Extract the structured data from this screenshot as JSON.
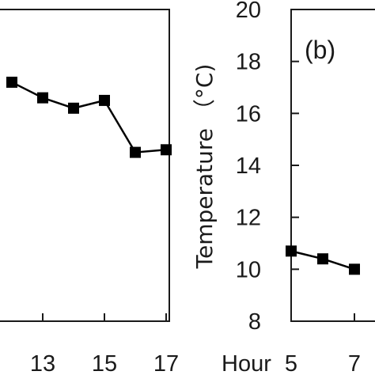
{
  "chart_data": [
    {
      "type": "line",
      "panel": "a",
      "xlabel": "",
      "ylabel": "",
      "x_ticks": [
        13,
        15,
        17
      ],
      "ylim": [
        8,
        20
      ],
      "series": [
        {
          "x": [
            12,
            13,
            14,
            15,
            16,
            17
          ],
          "y": [
            17.2,
            16.6,
            16.2,
            16.5,
            14.5,
            14.6
          ]
        }
      ]
    },
    {
      "type": "line",
      "panel": "b",
      "panel_label": "(b)",
      "ylabel": "Temperature （°C)",
      "x_prefix": "Hour",
      "x_ticks": [
        5,
        7
      ],
      "y_ticks": [
        8,
        10,
        12,
        14,
        16,
        18,
        20
      ],
      "ylim": [
        8,
        20
      ],
      "series": [
        {
          "x": [
            5,
            6,
            7
          ],
          "y": [
            10.7,
            10.4,
            10.0
          ]
        }
      ]
    }
  ]
}
